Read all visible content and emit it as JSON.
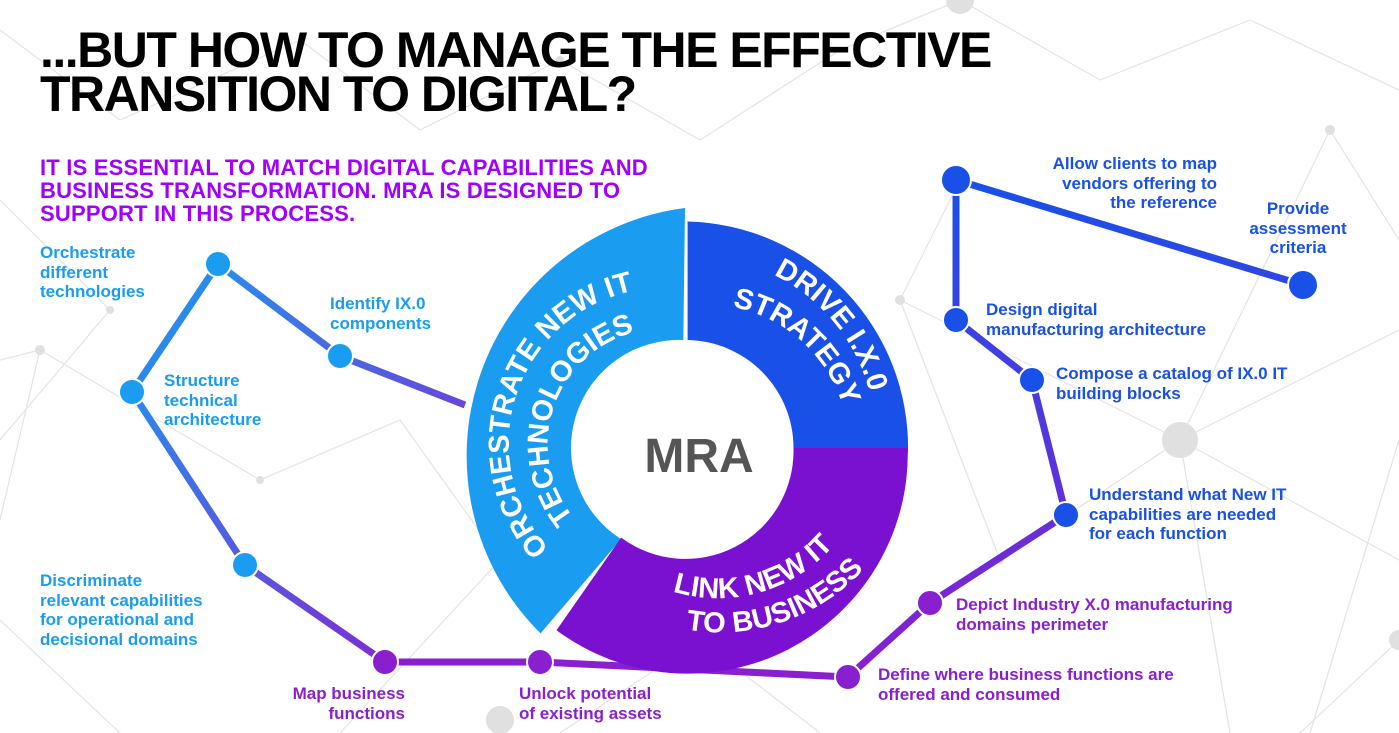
{
  "title_lines": [
    "...BUT HOW TO MANAGE THE EFFECTIVE",
    "TRANSITION TO DIGITAL?"
  ],
  "subtitle_lines": [
    "IT IS ESSENTIAL TO MATCH DIGITAL CAPABILITIES AND",
    "BUSINESS TRANSFORMATION. MRA IS DESIGNED TO",
    "SUPPORT IN THIS PROCESS."
  ],
  "colors": {
    "light_blue": "#1a9cf0",
    "blue": "#1850e8",
    "purple": "#8a1fd0",
    "title": "#000000",
    "subtitle": "#a100ff",
    "center_text": "#555555"
  },
  "wheel": {
    "center": "MRA",
    "segments": [
      {
        "lines": [
          "ORCHESTRATE NEW IT",
          "TECHNOLOGIES"
        ],
        "color": "#1a9cf0"
      },
      {
        "lines": [
          "DRIVE I.X.0",
          "STRATEGY"
        ],
        "color": "#1850e8"
      },
      {
        "lines": [
          "LINK NEW IT",
          "TO BUSINESS"
        ],
        "color": "#7a10d0"
      }
    ]
  },
  "steps": {
    "light_blue": [
      {
        "lines": [
          "Orchestrate",
          "different",
          "technologies"
        ]
      },
      {
        "lines": [
          "Identify IX.0",
          "components"
        ]
      },
      {
        "lines": [
          "Structure",
          "technical",
          "architecture"
        ]
      },
      {
        "lines": [
          "Discriminate",
          "relevant capabilities",
          "for operational and",
          "decisional domains"
        ]
      }
    ],
    "blue": [
      {
        "lines": [
          "Allow clients to map",
          "vendors offering to",
          "the reference"
        ]
      },
      {
        "lines": [
          "Provide",
          "assessment",
          "criteria"
        ]
      },
      {
        "lines": [
          "Design digital",
          "manufacturing architecture"
        ]
      },
      {
        "lines": [
          "Compose a catalog of IX.0 IT",
          "building blocks"
        ]
      },
      {
        "lines": [
          "Understand what New IT",
          "capabilities are needed",
          "for each function"
        ]
      }
    ],
    "purple": [
      {
        "lines": [
          "Depict Industry X.0 manufacturing",
          "domains perimeter"
        ]
      },
      {
        "lines": [
          "Define where business functions are",
          "offered and consumed"
        ]
      },
      {
        "lines": [
          "Map business",
          "functions"
        ]
      },
      {
        "lines": [
          "Unlock potential",
          "of existing assets"
        ]
      }
    ]
  }
}
